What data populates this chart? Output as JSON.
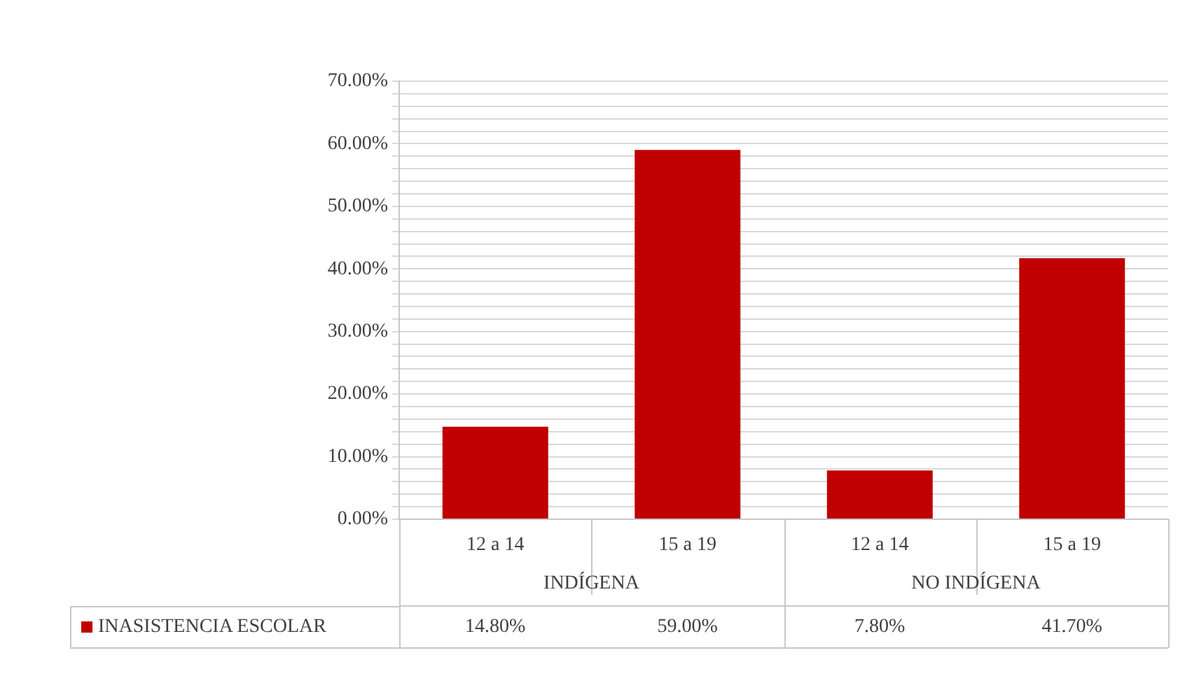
{
  "chart_data": {
    "type": "bar",
    "categories": [
      "12 a 14",
      "15 a 19",
      "12 a 14",
      "15 a 19"
    ],
    "annotations": [
      "INDÍGENA",
      "NO INDÍGENA"
    ],
    "series": [
      {
        "name": "INASISTENCIA ESCOLAR",
        "color": "#c00000",
        "values": [
          14.8,
          59.0,
          7.8,
          41.7
        ],
        "value_labels": [
          "14.80%",
          "59.00%",
          "7.80%",
          "41.70%"
        ]
      }
    ],
    "ylim": [
      0,
      70
    ],
    "yticks": [
      {
        "value": 0,
        "label": "0.00%"
      },
      {
        "value": 2,
        "label": null
      },
      {
        "value": 4,
        "label": null
      },
      {
        "value": 6,
        "label": null
      },
      {
        "value": 8,
        "label": null
      },
      {
        "value": 10,
        "label": "10.00%"
      },
      {
        "value": 12,
        "label": null
      },
      {
        "value": 14,
        "label": null
      },
      {
        "value": 16,
        "label": null
      },
      {
        "value": 18,
        "label": null
      },
      {
        "value": 20,
        "label": "20.00%"
      },
      {
        "value": 22,
        "label": null
      },
      {
        "value": 24,
        "label": null
      },
      {
        "value": 26,
        "label": null
      },
      {
        "value": 28,
        "label": null
      },
      {
        "value": 30,
        "label": "30.00%"
      },
      {
        "value": 32,
        "label": null
      },
      {
        "value": 34,
        "label": null
      },
      {
        "value": 36,
        "label": null
      },
      {
        "value": 38,
        "label": null
      },
      {
        "value": 40,
        "label": "40.00%"
      },
      {
        "value": 42,
        "label": null
      },
      {
        "value": 44,
        "label": null
      },
      {
        "value": 46,
        "label": null
      },
      {
        "value": 48,
        "label": null
      },
      {
        "value": 50,
        "label": "50.00%"
      },
      {
        "value": 52,
        "label": null
      },
      {
        "value": 54,
        "label": null
      },
      {
        "value": 56,
        "label": null
      },
      {
        "value": 58,
        "label": null
      },
      {
        "value": 60,
        "label": "60.00%"
      },
      {
        "value": 62,
        "label": null
      },
      {
        "value": 64,
        "label": null
      },
      {
        "value": 66,
        "label": null
      },
      {
        "value": 68,
        "label": null
      },
      {
        "value": 70,
        "label": "70.00%"
      }
    ],
    "grid": "y",
    "legend": "bottom"
  }
}
